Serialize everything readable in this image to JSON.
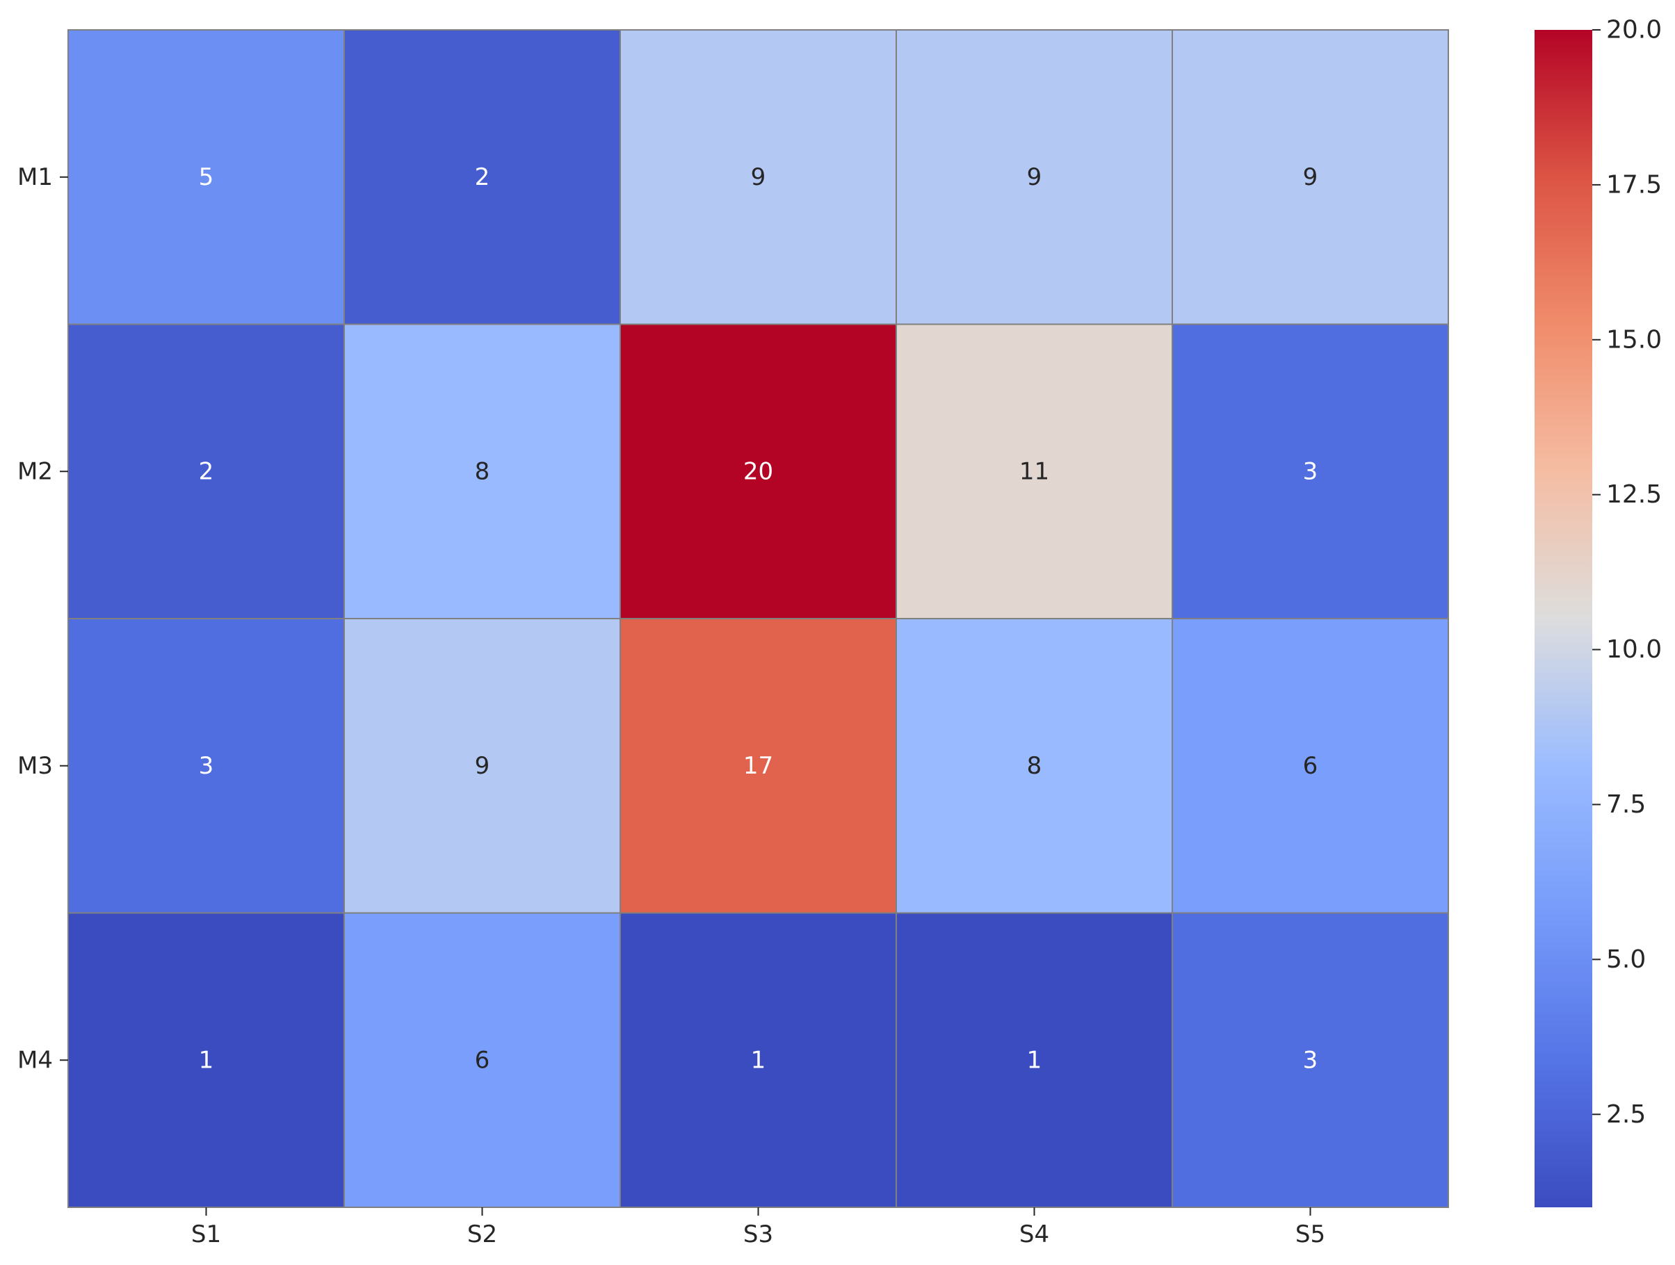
{
  "chart_data": {
    "type": "heatmap",
    "title": "",
    "xlabel": "",
    "ylabel": "",
    "x_categories": [
      "S1",
      "S2",
      "S3",
      "S4",
      "S5"
    ],
    "y_categories": [
      "M1",
      "M2",
      "M3",
      "M4"
    ],
    "values": [
      [
        5,
        2,
        9,
        9,
        9
      ],
      [
        2,
        8,
        20,
        11,
        3
      ],
      [
        3,
        9,
        17,
        8,
        6
      ],
      [
        1,
        6,
        1,
        1,
        3
      ]
    ],
    "annotations_visible": true,
    "colormap": "coolwarm",
    "color_range": [
      1,
      20
    ],
    "colorbar": {
      "ticks": [
        2.5,
        5.0,
        7.5,
        10.0,
        12.5,
        15.0,
        17.5,
        20.0
      ],
      "tick_labels": [
        "2.5",
        "5.0",
        "7.5",
        "10.0",
        "12.5",
        "15.0",
        "17.5",
        "20.0"
      ],
      "placement": "right"
    },
    "cell_border_color": "#808080",
    "grid": false
  }
}
